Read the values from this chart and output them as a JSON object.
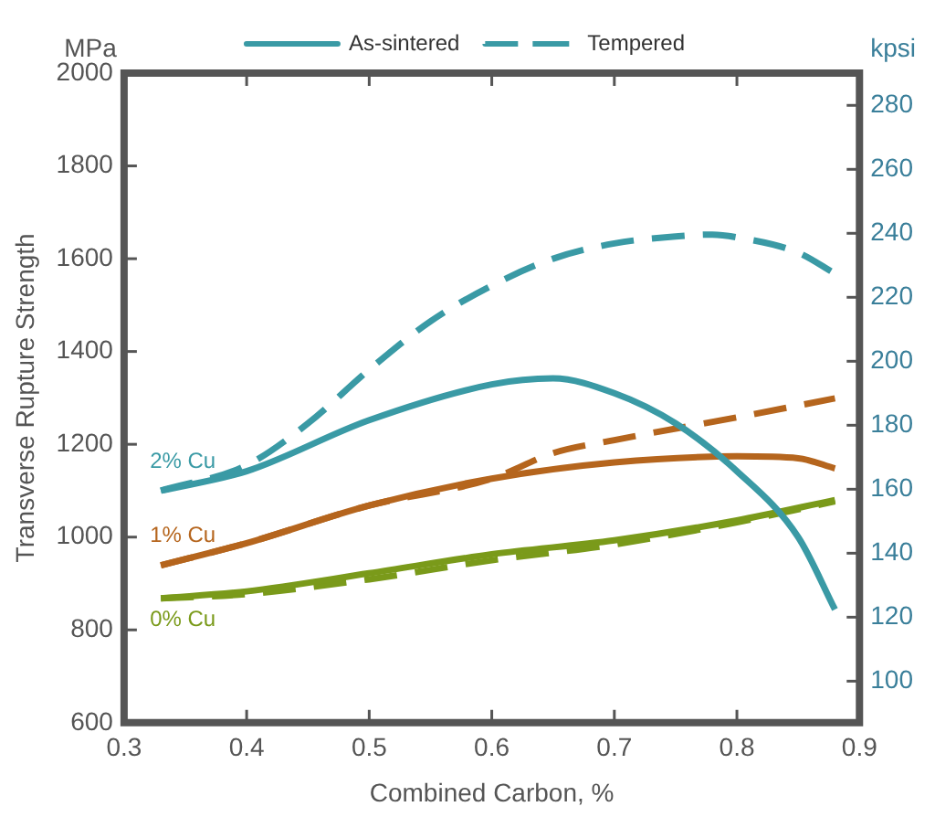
{
  "chart_data": {
    "type": "line",
    "xlabel": "Combined Carbon, %",
    "ylabel": "Transverse Rupture Strength",
    "y2label": "kpsi",
    "annotations": [
      "MPa",
      "2% Cu",
      "1% Cu",
      "0% Cu"
    ],
    "xlim": [
      0.3,
      0.9
    ],
    "xticks": [
      0.3,
      0.4,
      0.5,
      0.6,
      0.7,
      0.8,
      0.9
    ],
    "ylim": [
      600,
      2000
    ],
    "yticks": [
      600,
      800,
      1000,
      1200,
      1400,
      1600,
      1800,
      2000
    ],
    "y2lim": [
      87.02,
      290.08
    ],
    "y2ticks": [
      100,
      120,
      140,
      160,
      180,
      200,
      220,
      240,
      260,
      280
    ],
    "grid": false,
    "legend": "top left",
    "marker": "none",
    "series": [
      {
        "name": "As-sintered",
        "color": "#3a9aa5",
        "line_style": "solid",
        "x": [
          0.33,
          0.4,
          0.5,
          0.6,
          0.65,
          0.7,
          0.75,
          0.8,
          0.85,
          0.88
        ],
        "values": [
          1100,
          1142,
          1252,
          1329,
          1342,
          1310,
          1245,
          1142,
          1000,
          844
        ]
      },
      {
        "name": "Tempered",
        "color": "#3a9aa5",
        "line_style": "dashed",
        "x": [
          0.33,
          0.4,
          0.45,
          0.5,
          0.55,
          0.6,
          0.65,
          0.7,
          0.75,
          0.78,
          0.8,
          0.85,
          0.88
        ],
        "values": [
          1100,
          1155,
          1245,
          1361,
          1465,
          1542,
          1600,
          1633,
          1648,
          1652,
          1646,
          1613,
          1568
        ]
      },
      {
        "color": "#b5651d",
        "line_style": "solid",
        "x": [
          0.33,
          0.4,
          0.5,
          0.6,
          0.7,
          0.8,
          0.85,
          0.88
        ],
        "values": [
          939,
          987,
          1068,
          1126,
          1161,
          1174,
          1170,
          1148
        ]
      },
      {
        "color": "#b5651d",
        "line_style": "dashed",
        "x": [
          0.33,
          0.4,
          0.5,
          0.6,
          0.65,
          0.7,
          0.8,
          0.88
        ],
        "values": [
          939,
          987,
          1068,
          1126,
          1181,
          1209,
          1258,
          1299
        ]
      },
      {
        "color": "#7a9a1a",
        "line_style": "solid",
        "x": [
          0.33,
          0.4,
          0.5,
          0.6,
          0.7,
          0.8,
          0.88
        ],
        "values": [
          868,
          883,
          922,
          963,
          993,
          1036,
          1080
        ]
      },
      {
        "color": "#7a9a1a",
        "line_style": "dashed",
        "x": [
          0.33,
          0.4,
          0.5,
          0.6,
          0.7,
          0.8,
          0.88
        ],
        "values": [
          868,
          877,
          909,
          950,
          984,
          1032,
          1077
        ]
      }
    ]
  }
}
